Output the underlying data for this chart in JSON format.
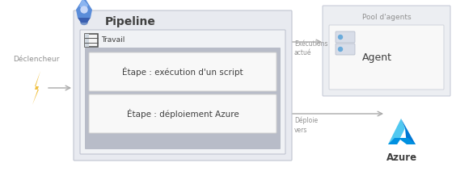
{
  "title": "Pipeline",
  "trigger_label": "Déclencheur",
  "job_label": "Travail",
  "step1_label": "Étape : exécution d'un script",
  "step2_label": "Étape : déploiement Azure",
  "pool_label": "Pool d'agents",
  "agent_label": "Agent",
  "executions_label": "Exécutions\nactué",
  "deploie_label": "Déploie\nvers",
  "azure_label": "Azure",
  "bg_color": "#ffffff",
  "pipeline_box_color": "#e8eaf0",
  "pipeline_box_edge": "#c0c4d0",
  "job_box_color": "#f0f2f5",
  "job_box_edge": "#c0c4d0",
  "steps_bg_color": "#b8bcc8",
  "step_box_color": "#f8f8f8",
  "step_box_edge": "#d0d0d0",
  "pool_box_color": "#eceef2",
  "pool_box_edge": "#c8ccd8",
  "agent_box_color": "#f8f8f8",
  "agent_box_edge": "#d0d4dc",
  "arrow_color": "#aaaaaa",
  "text_color": "#404040",
  "text_color_light": "#909090",
  "title_fontsize": 10,
  "label_fontsize": 6.5,
  "step_fontsize": 7.5,
  "agent_fontsize": 9,
  "pool_fontsize": 6.5
}
